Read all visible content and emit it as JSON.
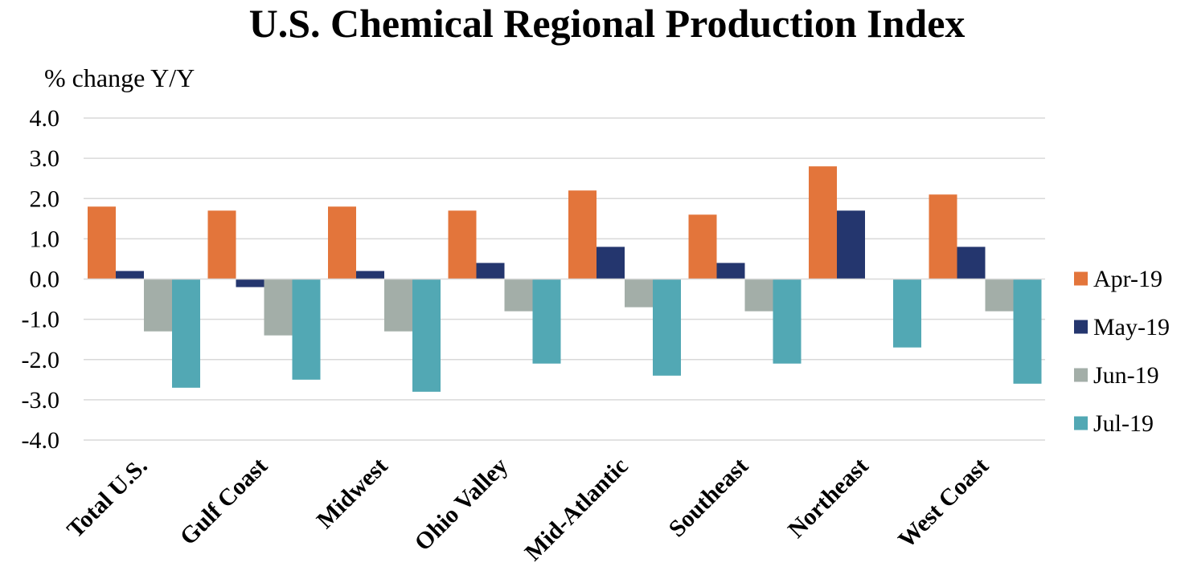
{
  "chart_data": {
    "type": "bar",
    "title": "U.S. Chemical Regional Production Index",
    "ylabel": "% change Y/Y",
    "xlabel": "",
    "ylim": [
      -4.0,
      4.0
    ],
    "ytick_step": 1.0,
    "ytick_decimals": 1,
    "grid": true,
    "legend_position": "right",
    "categories": [
      "Total U.S.",
      "Gulf Coast",
      "Midwest",
      "Ohio Valley",
      "Mid-Atlantic",
      "Southeast",
      "Northeast",
      "West Coast"
    ],
    "series": [
      {
        "name": "Apr-19",
        "color": "#e3753b",
        "values": [
          1.8,
          1.7,
          1.8,
          1.7,
          2.2,
          1.6,
          2.8,
          2.1
        ]
      },
      {
        "name": "May-19",
        "color": "#24366e",
        "values": [
          0.2,
          -0.2,
          0.2,
          0.4,
          0.8,
          0.4,
          1.7,
          0.8
        ]
      },
      {
        "name": "Jun-19",
        "color": "#a3aea8",
        "values": [
          -1.3,
          -1.4,
          -1.3,
          -0.8,
          -0.7,
          -0.8,
          0.0,
          -0.8
        ]
      },
      {
        "name": "Jul-19",
        "color": "#52a8b4",
        "values": [
          -2.7,
          -2.5,
          -2.8,
          -2.1,
          -2.4,
          -2.1,
          -1.7,
          -2.6
        ]
      }
    ]
  }
}
